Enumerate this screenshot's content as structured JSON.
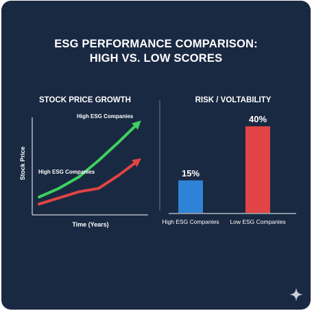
{
  "title": {
    "line1": "ESG PERFORMANCE COMPARISON:",
    "line2": "HIGH VS. LOW SCORES"
  },
  "colors": {
    "background": "#1a2942",
    "green": "#3ecf5e",
    "red": "#e04444",
    "blue": "#2f83d6",
    "text": "#ffffff"
  },
  "chart_data": [
    {
      "type": "line",
      "title": "STOCK PRICE GROWTH",
      "xlabel": "Time (Years)",
      "ylabel": "Stock Price",
      "grid": false,
      "legend": "inline labels",
      "series": [
        {
          "name": "High ESG Companies",
          "color": "#3ecf5e",
          "x": [
            0,
            1,
            2,
            3,
            4,
            5
          ],
          "y": [
            22,
            42,
            68,
            106,
            148,
            192
          ]
        },
        {
          "name": "High ESG Companies",
          "color": "#e04444",
          "x": [
            0,
            1,
            2,
            3,
            4,
            5
          ],
          "y": [
            6,
            20,
            34,
            42,
            72,
            106
          ]
        }
      ]
    },
    {
      "type": "bar",
      "title": "RISK / VOLTABILITY",
      "categories": [
        "High ESG Companies",
        "Low ESG Companies"
      ],
      "values": [
        15,
        40
      ],
      "value_labels": [
        "15%",
        "40%"
      ],
      "colors": [
        "#2f83d6",
        "#e04444"
      ],
      "ylim": [
        0,
        40
      ]
    }
  ]
}
